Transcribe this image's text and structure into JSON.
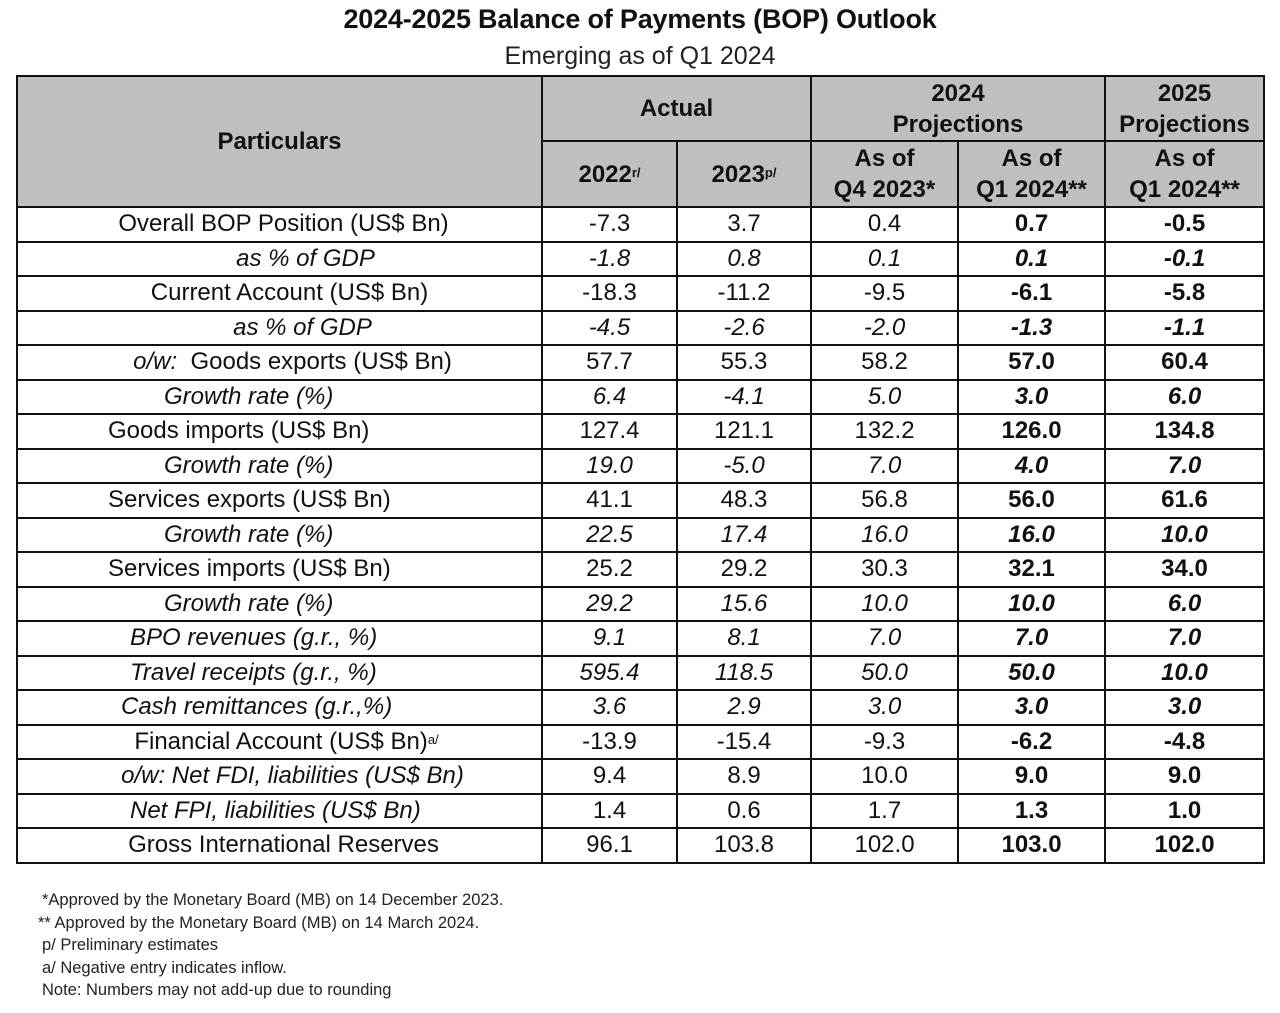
{
  "header": {
    "title": "2024-2025 Balance of Payments (BOP) Outlook",
    "subtitle": "Emerging as of Q1 2024"
  },
  "table": {
    "col_particulars": "Particulars",
    "group_actual": "Actual",
    "group_2024_line1": "2024",
    "group_2024_line2": "Projections",
    "group_2025_line1": "2025",
    "group_2025_line2": "Projections",
    "sub_2022": "2022",
    "sub_2022_sup": "r/",
    "sub_2023": "2023",
    "sub_2023_sup": "p/",
    "sub_q4_line1": "As of",
    "sub_q4_line2": "Q4 2023*",
    "sub_q1_line1": "As of",
    "sub_q1_line2": "Q1 2024**",
    "sub_2025_line1": "As of",
    "sub_2025_line2": "Q1 2024**",
    "rows": [
      {
        "label": "Overall BOP Position (US$ Bn)",
        "v2022": "-7.3",
        "v2023": "3.7",
        "q4_2023": "0.4",
        "q1_2024": "0.7",
        "p2025": "-0.5"
      },
      {
        "label": "as % of GDP",
        "v2022": "-1.8",
        "v2023": "0.8",
        "q4_2023": "0.1",
        "q1_2024": "0.1",
        "p2025": "-0.1"
      },
      {
        "label": "Current Account (US$ Bn)",
        "v2022": "-18.3",
        "v2023": "-11.2",
        "q4_2023": "-9.5",
        "q1_2024": "-6.1",
        "p2025": "-5.8"
      },
      {
        "label": "as % of GDP",
        "v2022": "-4.5",
        "v2023": "-2.6",
        "q4_2023": "-2.0",
        "q1_2024": "-1.3",
        "p2025": "-1.1"
      },
      {
        "label_prefix": "o/w:",
        "label": "Goods exports (US$ Bn)",
        "v2022": "57.7",
        "v2023": "55.3",
        "q4_2023": "58.2",
        "q1_2024": "57.0",
        "p2025": "60.4"
      },
      {
        "label": "Growth rate (%)",
        "v2022": "6.4",
        "v2023": "-4.1",
        "q4_2023": "5.0",
        "q1_2024": "3.0",
        "p2025": "6.0"
      },
      {
        "label": "Goods imports (US$ Bn)",
        "v2022": "127.4",
        "v2023": "121.1",
        "q4_2023": "132.2",
        "q1_2024": "126.0",
        "p2025": "134.8"
      },
      {
        "label": "Growth rate (%)",
        "v2022": "19.0",
        "v2023": "-5.0",
        "q4_2023": "7.0",
        "q1_2024": "4.0",
        "p2025": "7.0"
      },
      {
        "label": "Services exports (US$ Bn)",
        "v2022": "41.1",
        "v2023": "48.3",
        "q4_2023": "56.8",
        "q1_2024": "56.0",
        "p2025": "61.6"
      },
      {
        "label": "Growth rate (%)",
        "v2022": "22.5",
        "v2023": "17.4",
        "q4_2023": "16.0",
        "q1_2024": "16.0",
        "p2025": "10.0"
      },
      {
        "label": "Services imports (US$ Bn)",
        "v2022": "25.2",
        "v2023": "29.2",
        "q4_2023": "30.3",
        "q1_2024": "32.1",
        "p2025": "34.0"
      },
      {
        "label": "Growth rate (%)",
        "v2022": "29.2",
        "v2023": "15.6",
        "q4_2023": "10.0",
        "q1_2024": "10.0",
        "p2025": "6.0"
      },
      {
        "label": "BPO revenues (g.r., %)",
        "v2022": "9.1",
        "v2023": "8.1",
        "q4_2023": "7.0",
        "q1_2024": "7.0",
        "p2025": "7.0"
      },
      {
        "label": "Travel receipts (g.r., %)",
        "v2022": "595.4",
        "v2023": "118.5",
        "q4_2023": "50.0",
        "q1_2024": "50.0",
        "p2025": "10.0"
      },
      {
        "label": "Cash remittances (g.r.,%)",
        "v2022": "3.6",
        "v2023": "2.9",
        "q4_2023": "3.0",
        "q1_2024": "3.0",
        "p2025": "3.0"
      },
      {
        "label": "Financial Account (US$ Bn)",
        "label_sup": "a/",
        "v2022": "-13.9",
        "v2023": "-15.4",
        "q4_2023": "-9.3",
        "q1_2024": "-6.2",
        "p2025": "-4.8"
      },
      {
        "label": "o/w: Net FDI, liabilities (US$ Bn)",
        "v2022": "9.4",
        "v2023": "8.9",
        "q4_2023": "10.0",
        "q1_2024": "9.0",
        "p2025": "9.0"
      },
      {
        "label": "Net FPI, liabilities (US$ Bn)",
        "v2022": "1.4",
        "v2023": "0.6",
        "q4_2023": "1.7",
        "q1_2024": "1.3",
        "p2025": "1.0"
      },
      {
        "label": "Gross International Reserves",
        "v2022": "96.1",
        "v2023": "103.8",
        "q4_2023": "102.0",
        "q1_2024": "103.0",
        "p2025": "102.0"
      }
    ]
  },
  "notes": [
    "*Approved by the Monetary Board (MB) on 14 December 2023.",
    "** Approved by the Monetary Board (MB) on 14 March 2024.",
    "p/ Preliminary estimates",
    "a/ Negative entry indicates inflow.",
    "Note:  Numbers may not add-up due to rounding"
  ]
}
